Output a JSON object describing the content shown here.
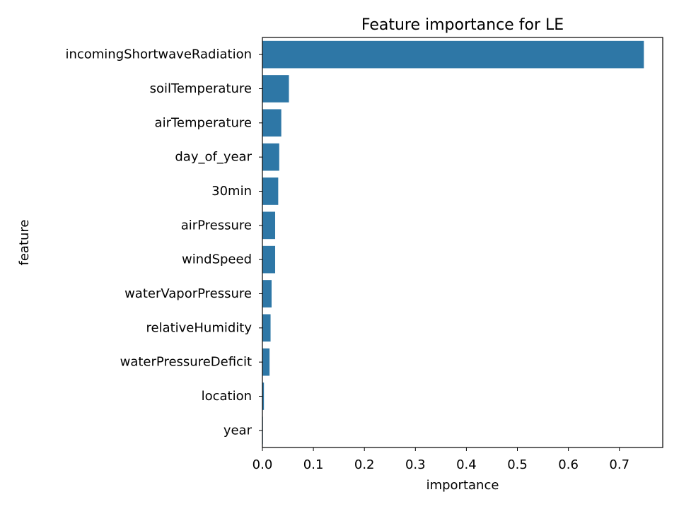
{
  "chart_data": {
    "type": "bar",
    "orientation": "horizontal",
    "title": "Feature importance for LE",
    "xlabel": "importance",
    "ylabel": "feature",
    "categories": [
      "incomingShortwaveRadiation",
      "soilTemperature",
      "airTemperature",
      "day_of_year",
      "30min",
      "airPressure",
      "windSpeed",
      "waterVaporPressure",
      "relativeHumidity",
      "waterPressureDeficit",
      "location",
      "year"
    ],
    "values": [
      0.748,
      0.052,
      0.037,
      0.033,
      0.031,
      0.025,
      0.025,
      0.018,
      0.016,
      0.014,
      0.003,
      0.001
    ],
    "xlim": [
      0,
      0.785
    ],
    "xticks": [
      0.0,
      0.1,
      0.2,
      0.3,
      0.4,
      0.5,
      0.6,
      0.7
    ],
    "xtick_labels": [
      "0.0",
      "0.1",
      "0.2",
      "0.3",
      "0.4",
      "0.5",
      "0.6",
      "0.7"
    ],
    "grid": false,
    "bar_color": "#2e77a6"
  }
}
